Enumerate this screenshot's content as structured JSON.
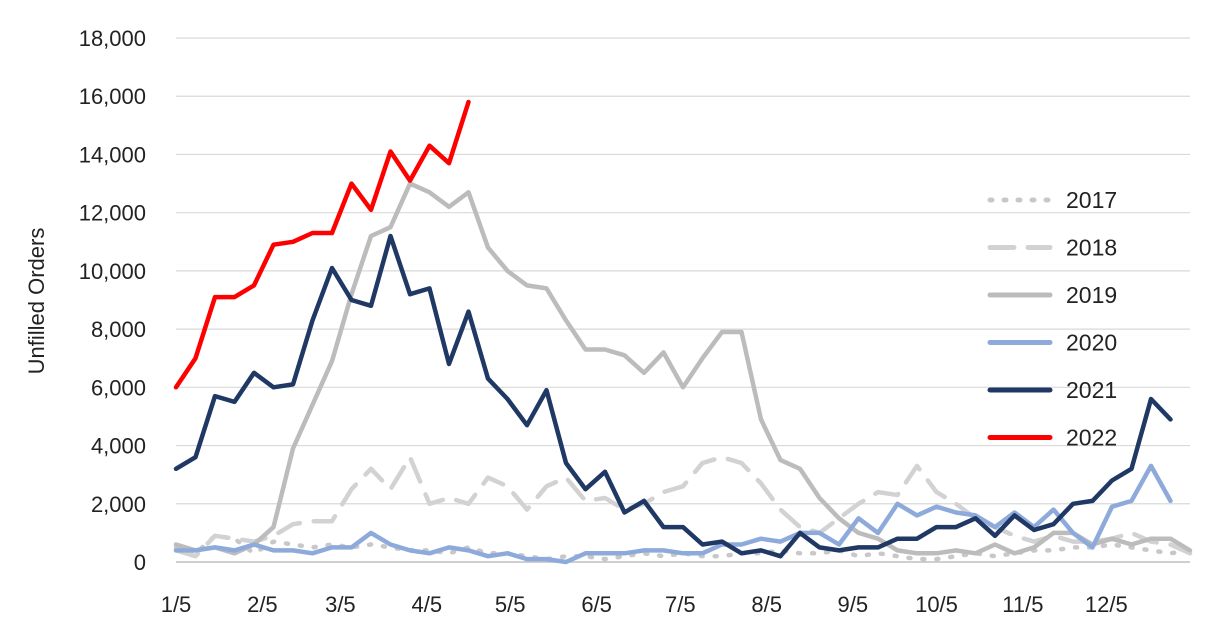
{
  "chart_data": {
    "type": "line",
    "title": "",
    "xlabel": "",
    "ylabel": "Unfilled Orders",
    "ylim": [
      0,
      18000
    ],
    "yticks": [
      "0",
      "2,000",
      "4,000",
      "6,000",
      "8,000",
      "10,000",
      "12,000",
      "14,000",
      "16,000",
      "18,000"
    ],
    "ytick_values": [
      0,
      2000,
      4000,
      6000,
      8000,
      10000,
      12000,
      14000,
      16000,
      18000
    ],
    "xticks": [
      "1/5",
      "2/5",
      "3/5",
      "4/5",
      "5/5",
      "6/5",
      "7/5",
      "8/5",
      "9/5",
      "10/5",
      "11/5",
      "12/5"
    ],
    "xtick_weeks": [
      1,
      5.43,
      9.43,
      13.86,
      18.14,
      22.57,
      26.86,
      31.29,
      35.71,
      40,
      44.43,
      48.71
    ],
    "xlim_weeks": [
      1,
      53
    ],
    "grid": "horizontal",
    "legend_position": "right",
    "series": [
      {
        "name": "2017",
        "color": "#c8c8c8",
        "dash": "dotted",
        "values": [
          500,
          300,
          900,
          800,
          300,
          700,
          600,
          500,
          600,
          500,
          600,
          500,
          400,
          400,
          300,
          500,
          300,
          300,
          200,
          100,
          200,
          200,
          100,
          200,
          300,
          200,
          300,
          200,
          200,
          300,
          300,
          400,
          300,
          300,
          400,
          200,
          300,
          200,
          100,
          100,
          200,
          300,
          200,
          300,
          400,
          400,
          500,
          500,
          600,
          500,
          400,
          300,
          400
        ]
      },
      {
        "name": "2018",
        "color": "#d2d2d2",
        "dash": "dashed",
        "values": [
          400,
          200,
          900,
          800,
          700,
          900,
          1300,
          1400,
          1400,
          2500,
          3200,
          2500,
          3600,
          2000,
          2200,
          2000,
          2900,
          2600,
          1800,
          2600,
          2900,
          2100,
          2200,
          1800,
          2000,
          2400,
          2600,
          3400,
          3600,
          3400,
          2700,
          1800,
          1200,
          1000,
          1500,
          2000,
          2400,
          2300,
          3300,
          2400,
          2000,
          1500,
          1200,
          900,
          700,
          900,
          700,
          700,
          800,
          1000,
          700,
          600,
          300
        ]
      },
      {
        "name": "2019",
        "color": "#bcbcbc",
        "dash": "solid",
        "values": [
          600,
          400,
          500,
          300,
          600,
          1200,
          3900,
          5400,
          6900,
          9200,
          11200,
          11500,
          13000,
          12700,
          12200,
          12700,
          10800,
          10000,
          9500,
          9400,
          8300,
          7300,
          7300,
          7100,
          6500,
          7200,
          6000,
          7000,
          7900,
          7900,
          4900,
          3500,
          3200,
          2200,
          1500,
          1000,
          800,
          400,
          300,
          300,
          400,
          300,
          600,
          300,
          500,
          1000,
          1000,
          600,
          800,
          600,
          800,
          800,
          400
        ]
      },
      {
        "name": "2020",
        "color": "#8eaadb",
        "dash": "solid",
        "values": [
          400,
          400,
          500,
          400,
          600,
          400,
          400,
          300,
          500,
          500,
          1000,
          600,
          400,
          300,
          500,
          400,
          200,
          300,
          100,
          100,
          0,
          300,
          300,
          300,
          400,
          400,
          300,
          300,
          600,
          600,
          800,
          700,
          1000,
          1000,
          600,
          1500,
          1000,
          2000,
          1600,
          1900,
          1700,
          1600,
          1200,
          1700,
          1200,
          1800,
          1000,
          500,
          1900,
          2100,
          3300,
          2100
        ]
      },
      {
        "name": "2021",
        "color": "#1f3864",
        "dash": "solid",
        "values": [
          3200,
          3600,
          5700,
          5500,
          6500,
          6000,
          6100,
          8300,
          10100,
          9000,
          8800,
          11200,
          9200,
          9400,
          6800,
          8600,
          6300,
          5600,
          4700,
          5900,
          3400,
          2500,
          3100,
          1700,
          2100,
          1200,
          1200,
          600,
          700,
          300,
          400,
          200,
          1000,
          500,
          400,
          500,
          500,
          800,
          800,
          1200,
          1200,
          1500,
          900,
          1600,
          1100,
          1300,
          2000,
          2100,
          2800,
          3200,
          5600,
          4900
        ]
      },
      {
        "name": "2022",
        "color": "#ff0000",
        "dash": "solid",
        "values": [
          6000,
          7000,
          9100,
          9100,
          9500,
          10900,
          11000,
          11300,
          11300,
          13000,
          12100,
          14100,
          13100,
          14300,
          13700,
          15800
        ]
      }
    ]
  }
}
